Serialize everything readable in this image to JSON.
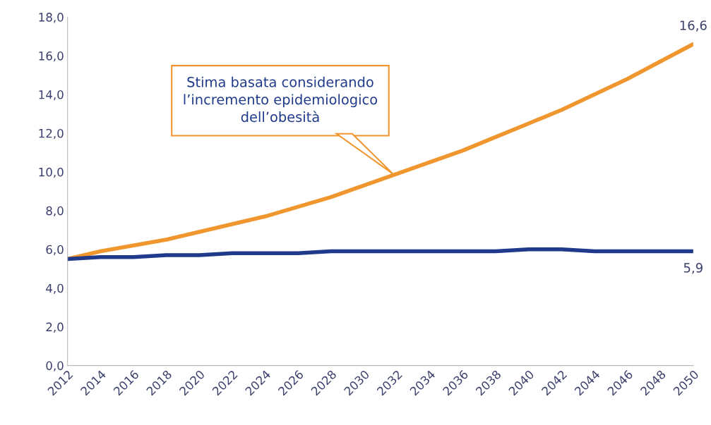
{
  "chart_data": {
    "type": "line",
    "x": [
      2012,
      2014,
      2016,
      2018,
      2020,
      2022,
      2024,
      2026,
      2028,
      2030,
      2032,
      2034,
      2036,
      2038,
      2040,
      2042,
      2044,
      2046,
      2048,
      2050
    ],
    "series": [
      {
        "color": "#f0962e",
        "values": [
          5.5,
          5.9,
          6.2,
          6.5,
          6.9,
          7.3,
          7.7,
          8.2,
          8.7,
          9.3,
          9.9,
          10.5,
          11.1,
          11.8,
          12.5,
          13.2,
          14.0,
          14.8,
          15.7,
          16.6
        ]
      },
      {
        "color": "#1f3a8a",
        "values": [
          5.5,
          5.6,
          5.6,
          5.7,
          5.7,
          5.8,
          5.8,
          5.8,
          5.9,
          5.9,
          5.9,
          5.9,
          5.9,
          5.9,
          6.0,
          6.0,
          5.9,
          5.9,
          5.9,
          5.9
        ]
      }
    ],
    "xlim": [
      2012,
      2050
    ],
    "xticks": [
      2012,
      2014,
      2016,
      2018,
      2020,
      2022,
      2024,
      2026,
      2028,
      2030,
      2032,
      2034,
      2036,
      2038,
      2040,
      2042,
      2044,
      2046,
      2048,
      2050
    ],
    "ylim": [
      0,
      18
    ],
    "yticks": [
      {
        "value": 0,
        "label": "0,0"
      },
      {
        "value": 2,
        "label": "2,0"
      },
      {
        "value": 4,
        "label": "4,0"
      },
      {
        "value": 6,
        "label": "6,0"
      },
      {
        "value": 8,
        "label": "8,0"
      },
      {
        "value": 10,
        "label": "10,0"
      },
      {
        "value": 12,
        "label": "12,0"
      },
      {
        "value": 14,
        "label": "14,0"
      },
      {
        "value": 16,
        "label": "16,0"
      },
      {
        "value": 18,
        "label": "18,0"
      }
    ],
    "annotations": [
      "Stima basata considerando\nl’incremento epidemiologico\ndell’obesità",
      {
        "text": "16,6",
        "x": 2050,
        "y": 16.6
      },
      {
        "text": "5,9",
        "x": 2050,
        "y": 5.9
      }
    ],
    "grid": false,
    "legend": false,
    "marker": "none",
    "line_style": "solid"
  }
}
